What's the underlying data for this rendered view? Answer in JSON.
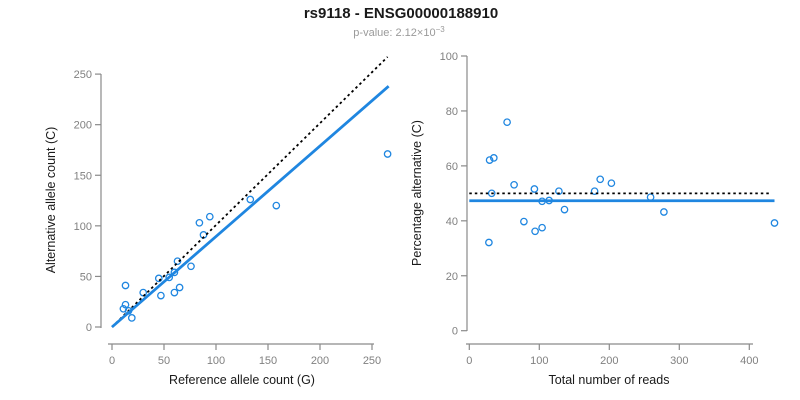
{
  "header": {
    "title": "rs9118 - ENSG00000188910",
    "pvalue_prefix": "p-value: 2.12×10",
    "pvalue_exponent": "−3"
  },
  "colors": {
    "accent_blue": "#1f86e0",
    "line_black": "#000000",
    "tick_label_gray": "#808080",
    "axis_gray": "#8a8a8a",
    "axis_title_dark": "#1a1a1a",
    "subtitle_gray": "#9a9a9a"
  },
  "chart_data": [
    {
      "type": "scatter",
      "name": "allele-count-scatter",
      "xlabel": "Reference allele count (G)",
      "ylabel": "Alternative allele count (C)",
      "xlim": [
        0,
        265
      ],
      "ylim": [
        0,
        267
      ],
      "xticks": [
        0,
        50,
        100,
        150,
        200,
        250
      ],
      "yticks": [
        0,
        50,
        100,
        150,
        200,
        250
      ],
      "grid": false,
      "legend": "none",
      "marker": "open-circle",
      "points": [
        [
          11,
          18
        ],
        [
          13,
          22
        ],
        [
          16,
          16
        ],
        [
          19,
          9
        ],
        [
          13,
          41
        ],
        [
          30,
          34
        ],
        [
          45,
          48
        ],
        [
          47,
          31
        ],
        [
          55,
          49
        ],
        [
          60,
          34
        ],
        [
          60,
          54
        ],
        [
          63,
          65
        ],
        [
          65,
          39
        ],
        [
          76,
          60
        ],
        [
          84,
          103
        ],
        [
          88,
          91
        ],
        [
          94,
          109
        ],
        [
          133,
          126
        ],
        [
          158,
          120
        ],
        [
          265,
          171
        ]
      ],
      "lines": [
        {
          "name": "identity-line",
          "style": "dotted",
          "color": "black",
          "x1": 0,
          "y1": 0,
          "x2": 265,
          "y2": 267
        },
        {
          "name": "regression-line",
          "style": "solid",
          "color": "blue",
          "x1": 0,
          "y1": 0,
          "x2": 266,
          "y2": 238
        }
      ]
    },
    {
      "type": "scatter",
      "name": "percentage-alternative-scatter",
      "xlabel": "Total number of reads",
      "ylabel": "Percentage alternative (C)",
      "xlim": [
        0,
        440
      ],
      "ylim": [
        0,
        100
      ],
      "xticks": [
        0,
        100,
        200,
        300,
        400
      ],
      "yticks": [
        0,
        20,
        40,
        60,
        80,
        100
      ],
      "grid": false,
      "legend": "none",
      "marker": "open-circle",
      "points": [
        [
          29,
          62.1
        ],
        [
          35,
          62.9
        ],
        [
          32,
          50.0
        ],
        [
          28,
          32.1
        ],
        [
          54,
          75.9
        ],
        [
          64,
          53.1
        ],
        [
          93,
          51.6
        ],
        [
          78,
          39.7
        ],
        [
          104,
          47.1
        ],
        [
          94,
          36.2
        ],
        [
          114,
          47.4
        ],
        [
          128,
          50.8
        ],
        [
          104,
          37.5
        ],
        [
          136,
          44.1
        ],
        [
          187,
          55.1
        ],
        [
          179,
          50.8
        ],
        [
          203,
          53.7
        ],
        [
          259,
          48.6
        ],
        [
          278,
          43.2
        ],
        [
          436,
          39.2
        ]
      ],
      "lines": [
        {
          "name": "expected-50-line",
          "style": "dotted",
          "color": "black",
          "x1": 0,
          "y1": 50,
          "x2": 428,
          "y2": 50
        },
        {
          "name": "fit-line",
          "style": "solid",
          "color": "blue",
          "x1": 0,
          "y1": 47.3,
          "x2": 436,
          "y2": 47.3
        }
      ]
    }
  ]
}
